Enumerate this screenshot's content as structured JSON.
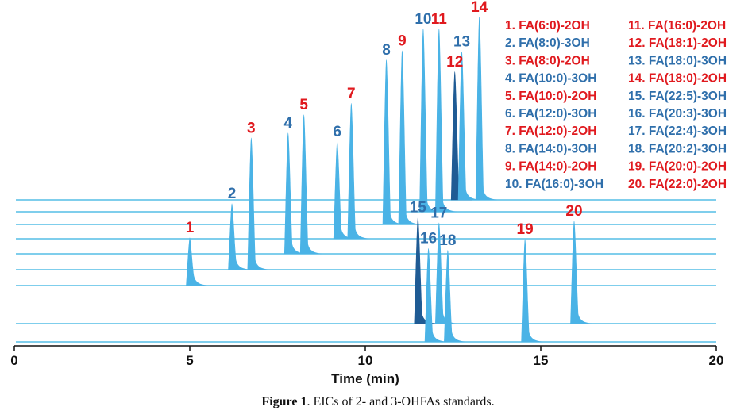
{
  "chart_data": {
    "type": "line",
    "subtype": "stacked extracted ion chromatograms",
    "xlabel": "Time (min)",
    "ylabel": "",
    "xlim": [
      0,
      20
    ],
    "x_ticks": [
      0,
      5,
      10,
      15,
      20
    ],
    "colors": {
      "two_oh": "#e0191e",
      "three_oh": "#2f6fab",
      "trace": "#4ab3e6",
      "dark_peak": "#1f5b94",
      "baseline": "#55bde6"
    },
    "peaks": [
      {
        "id": "1",
        "name": "FA(6:0)-2OH",
        "class": "2OH",
        "rt": 5.0,
        "intensity": 0.26,
        "trace": 6
      },
      {
        "id": "2",
        "name": "FA(8:0)-3OH",
        "class": "3OH",
        "rt": 6.2,
        "intensity": 0.36,
        "trace": 5
      },
      {
        "id": "3",
        "name": "FA(8:0)-2OH",
        "class": "2OH",
        "rt": 6.75,
        "intensity": 0.72,
        "trace": 5
      },
      {
        "id": "4",
        "name": "FA(10:0)-3OH",
        "class": "3OH",
        "rt": 7.8,
        "intensity": 0.66,
        "trace": 4
      },
      {
        "id": "5",
        "name": "FA(10:0)-2OH",
        "class": "2OH",
        "rt": 8.25,
        "intensity": 0.76,
        "trace": 4
      },
      {
        "id": "6",
        "name": "FA(12:0)-3OH",
        "class": "3OH",
        "rt": 9.2,
        "intensity": 0.53,
        "trace": 3
      },
      {
        "id": "7",
        "name": "FA(12:0)-2OH",
        "class": "2OH",
        "rt": 9.6,
        "intensity": 0.74,
        "trace": 3
      },
      {
        "id": "8",
        "name": "FA(14:0)-3OH",
        "class": "3OH",
        "rt": 10.6,
        "intensity": 0.9,
        "trace": 2
      },
      {
        "id": "9",
        "name": "FA(14:0)-2OH",
        "class": "2OH",
        "rt": 11.05,
        "intensity": 0.95,
        "trace": 2
      },
      {
        "id": "10",
        "name": "FA(16:0)-3OH",
        "class": "3OH",
        "rt": 11.65,
        "intensity": 1.0,
        "trace": 1
      },
      {
        "id": "11",
        "name": "FA(16:0)-2OH",
        "class": "2OH",
        "rt": 12.1,
        "intensity": 1.0,
        "trace": 1
      },
      {
        "id": "12",
        "name": "FA(18:1)-2OH",
        "class": "2OH",
        "rt": 12.55,
        "intensity": 0.7,
        "trace": 0
      },
      {
        "id": "13",
        "name": "FA(18:0)-3OH",
        "class": "3OH",
        "rt": 12.75,
        "intensity": 0.81,
        "trace": 0
      },
      {
        "id": "14",
        "name": "FA(18:0)-2OH",
        "class": "2OH",
        "rt": 13.25,
        "intensity": 1.0,
        "trace": 0
      },
      {
        "id": "15",
        "name": "FA(22:5)-3OH",
        "class": "3OH",
        "rt": 11.5,
        "intensity": 0.58,
        "trace": 7
      },
      {
        "id": "16",
        "name": "FA(20:3)-3OH",
        "class": "3OH",
        "rt": 11.8,
        "intensity": 0.51,
        "trace": 8
      },
      {
        "id": "17",
        "name": "FA(22:4)-3OH",
        "class": "3OH",
        "rt": 12.1,
        "intensity": 0.55,
        "trace": 7
      },
      {
        "id": "18",
        "name": "FA(20:2)-3OH",
        "class": "3OH",
        "rt": 12.35,
        "intensity": 0.5,
        "trace": 8
      },
      {
        "id": "19",
        "name": "FA(20:0)-2OH",
        "class": "2OH",
        "rt": 14.55,
        "intensity": 0.56,
        "trace": 8
      },
      {
        "id": "20",
        "name": "FA(22:0)-2OH",
        "class": "2OH",
        "rt": 15.95,
        "intensity": 0.56,
        "trace": 7
      }
    ],
    "legend": [
      {
        "text": "1. FA(6:0)-2OH",
        "class": "2OH"
      },
      {
        "text": "2. FA(8:0)-3OH",
        "class": "3OH"
      },
      {
        "text": "3. FA(8:0)-2OH",
        "class": "2OH"
      },
      {
        "text": "4. FA(10:0)-3OH",
        "class": "3OH"
      },
      {
        "text": "5. FA(10:0)-2OH",
        "class": "2OH"
      },
      {
        "text": "6. FA(12:0)-3OH",
        "class": "3OH"
      },
      {
        "text": "7. FA(12:0)-2OH",
        "class": "2OH"
      },
      {
        "text": "8. FA(14:0)-3OH",
        "class": "3OH"
      },
      {
        "text": "9. FA(14:0)-2OH",
        "class": "2OH"
      },
      {
        "text": "10. FA(16:0)-3OH",
        "class": "3OH"
      },
      {
        "text": "11. FA(16:0)-2OH",
        "class": "2OH"
      },
      {
        "text": "12. FA(18:1)-2OH",
        "class": "2OH"
      },
      {
        "text": "13. FA(18:0)-3OH",
        "class": "3OH"
      },
      {
        "text": "14. FA(18:0)-2OH",
        "class": "2OH"
      },
      {
        "text": "15. FA(22:5)-3OH",
        "class": "3OH"
      },
      {
        "text": "16. FA(20:3)-3OH",
        "class": "3OH"
      },
      {
        "text": "17. FA(22:4)-3OH",
        "class": "3OH"
      },
      {
        "text": "18. FA(20:2)-3OH",
        "class": "3OH"
      },
      {
        "text": "19. FA(20:0)-2OH",
        "class": "2OH"
      },
      {
        "text": "20. FA(22:0)-2OH",
        "class": "2OH"
      }
    ],
    "legend_position": "top-right"
  },
  "caption": {
    "label": "Figure 1",
    "text": ". EICs of 2- and 3-OHFAs standards."
  }
}
